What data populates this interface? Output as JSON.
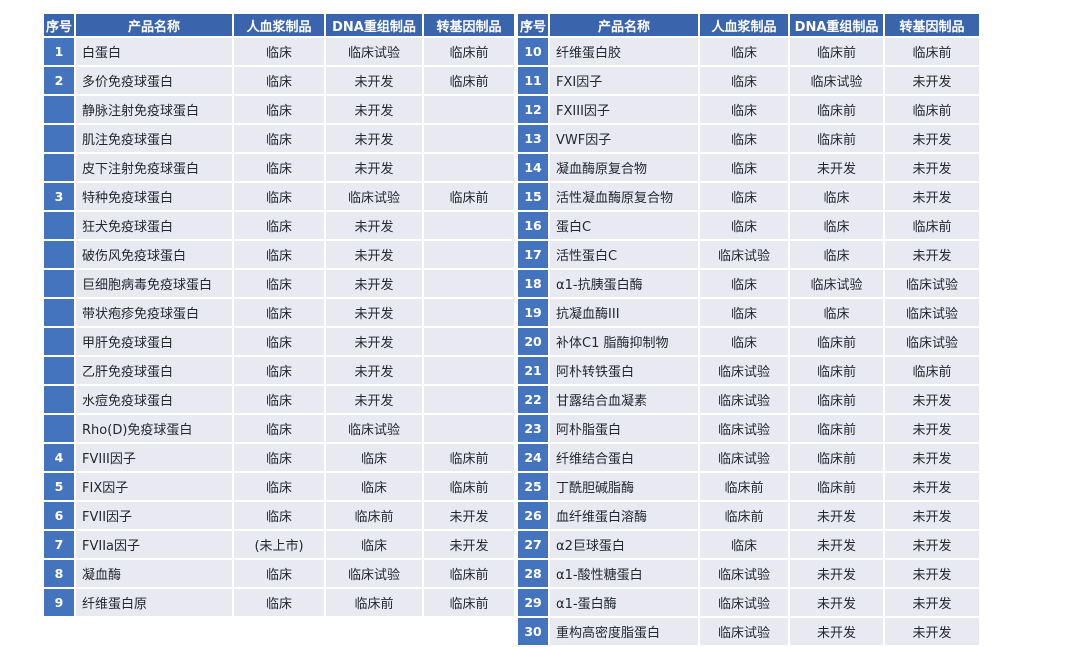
{
  "colors": {
    "header_bg": "#3A65AC",
    "index_cell_bg": "#4574BF",
    "row_bg": "#E9EAF1",
    "header_text": "#FFFFFF",
    "cell_text": "#23272F",
    "page_bg": "#FFFFFF"
  },
  "tables": {
    "headers": {
      "index": "序号",
      "product": "产品名称",
      "plasma": "人血浆制品",
      "dna": "DNA重组制品",
      "transgenic": "转基因制品"
    },
    "left_rows": [
      {
        "num": "1",
        "name": "白蛋白",
        "plasma": "临床",
        "dna": "临床试验",
        "gene": "临床前"
      },
      {
        "num": "2",
        "name": "多价免疫球蛋白",
        "plasma": "临床",
        "dna": "未开发",
        "gene": "临床前"
      },
      {
        "num": "",
        "name": "静脉注射免疫球蛋白",
        "plasma": "临床",
        "dna": "未开发",
        "gene": ""
      },
      {
        "num": "",
        "name": "肌注免疫球蛋白",
        "plasma": "临床",
        "dna": "未开发",
        "gene": ""
      },
      {
        "num": "",
        "name": "皮下注射免疫球蛋白",
        "plasma": "临床",
        "dna": "未开发",
        "gene": ""
      },
      {
        "num": "3",
        "name": "特种免疫球蛋白",
        "plasma": "临床",
        "dna": "临床试验",
        "gene": "临床前"
      },
      {
        "num": "",
        "name": "狂犬免疫球蛋白",
        "plasma": "临床",
        "dna": "未开发",
        "gene": ""
      },
      {
        "num": "",
        "name": "破伤风免疫球蛋白",
        "plasma": "临床",
        "dna": "未开发",
        "gene": ""
      },
      {
        "num": "",
        "name": "巨细胞病毒免疫球蛋白",
        "plasma": "临床",
        "dna": "未开发",
        "gene": ""
      },
      {
        "num": "",
        "name": "带状疱疹免疫球蛋白",
        "plasma": "临床",
        "dna": "未开发",
        "gene": ""
      },
      {
        "num": "",
        "name": "甲肝免疫球蛋白",
        "plasma": "临床",
        "dna": "未开发",
        "gene": ""
      },
      {
        "num": "",
        "name": "乙肝免疫球蛋白",
        "plasma": "临床",
        "dna": "未开发",
        "gene": ""
      },
      {
        "num": "",
        "name": "水痘免疫球蛋白",
        "plasma": "临床",
        "dna": "未开发",
        "gene": ""
      },
      {
        "num": "",
        "name": "Rho(D)免疫球蛋白",
        "plasma": "临床",
        "dna": "临床试验",
        "gene": ""
      },
      {
        "num": "4",
        "name": "FVIII因子",
        "plasma": "临床",
        "dna": "临床",
        "gene": "临床前"
      },
      {
        "num": "5",
        "name": "FIX因子",
        "plasma": "临床",
        "dna": "临床",
        "gene": "临床前"
      },
      {
        "num": "6",
        "name": "FVII因子",
        "plasma": "临床",
        "dna": "临床前",
        "gene": "未开发"
      },
      {
        "num": "7",
        "name": "FVIIa因子",
        "plasma": "(未上市)",
        "dna": "临床",
        "gene": "未开发"
      },
      {
        "num": "8",
        "name": "凝血酶",
        "plasma": "临床",
        "dna": "临床试验",
        "gene": "临床前"
      },
      {
        "num": "9",
        "name": "纤维蛋白原",
        "plasma": "临床",
        "dna": "临床前",
        "gene": "临床前"
      }
    ],
    "right_rows": [
      {
        "num": "10",
        "name": "纤维蛋白胶",
        "plasma": "临床",
        "dna": "临床前",
        "gene": "临床前"
      },
      {
        "num": "11",
        "name": "FXI因子",
        "plasma": "临床",
        "dna": "临床试验",
        "gene": "未开发"
      },
      {
        "num": "12",
        "name": "FXIII因子",
        "plasma": "临床",
        "dna": "临床前",
        "gene": "临床前"
      },
      {
        "num": "13",
        "name": "VWF因子",
        "plasma": "临床",
        "dna": "临床前",
        "gene": "未开发"
      },
      {
        "num": "14",
        "name": "凝血酶原复合物",
        "plasma": "临床",
        "dna": "未开发",
        "gene": "未开发"
      },
      {
        "num": "15",
        "name": "活性凝血酶原复合物",
        "plasma": "临床",
        "dna": "临床",
        "gene": "未开发"
      },
      {
        "num": "16",
        "name": "蛋白C",
        "plasma": "临床",
        "dna": "临床",
        "gene": "临床前"
      },
      {
        "num": "17",
        "name": "活性蛋白C",
        "plasma": "临床试验",
        "dna": "临床",
        "gene": "未开发"
      },
      {
        "num": "18",
        "name": "α1-抗胰蛋白酶",
        "plasma": "临床",
        "dna": "临床试验",
        "gene": "临床试验"
      },
      {
        "num": "19",
        "name": "抗凝血酶III",
        "plasma": "临床",
        "dna": "临床",
        "gene": "临床试验"
      },
      {
        "num": "20",
        "name": "补体C1 脂酶抑制物",
        "plasma": "临床",
        "dna": "临床前",
        "gene": "临床试验"
      },
      {
        "num": "21",
        "name": "阿朴转铁蛋白",
        "plasma": "临床试验",
        "dna": "临床前",
        "gene": "临床前"
      },
      {
        "num": "22",
        "name": "甘露结合血凝素",
        "plasma": "临床试验",
        "dna": "临床前",
        "gene": "未开发"
      },
      {
        "num": "23",
        "name": "阿朴脂蛋白",
        "plasma": "临床试验",
        "dna": "临床前",
        "gene": "未开发"
      },
      {
        "num": "24",
        "name": "纤维结合蛋白",
        "plasma": "临床试验",
        "dna": "临床前",
        "gene": "未开发"
      },
      {
        "num": "25",
        "name": "丁酰胆碱脂酶",
        "plasma": "临床前",
        "dna": "临床前",
        "gene": "未开发"
      },
      {
        "num": "26",
        "name": "血纤维蛋白溶酶",
        "plasma": "临床前",
        "dna": "未开发",
        "gene": "未开发"
      },
      {
        "num": "27",
        "name": "α2巨球蛋白",
        "plasma": "临床",
        "dna": "未开发",
        "gene": "未开发"
      },
      {
        "num": "28",
        "name": "α1-酸性糖蛋白",
        "plasma": "临床试验",
        "dna": "未开发",
        "gene": "未开发"
      },
      {
        "num": "29",
        "name": "α1-蛋白酶",
        "plasma": "临床试验",
        "dna": "未开发",
        "gene": "未开发"
      },
      {
        "num": "30",
        "name": "重构高密度脂蛋白",
        "plasma": "临床试验",
        "dna": "未开发",
        "gene": "未开发"
      }
    ]
  }
}
